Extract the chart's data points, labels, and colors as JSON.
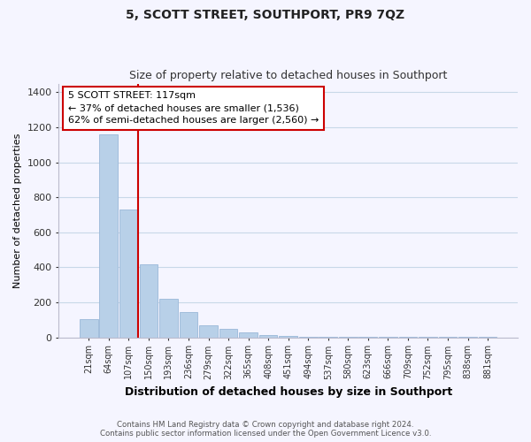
{
  "title": "5, SCOTT STREET, SOUTHPORT, PR9 7QZ",
  "subtitle": "Size of property relative to detached houses in Southport",
  "xlabel": "Distribution of detached houses by size in Southport",
  "ylabel": "Number of detached properties",
  "bar_labels": [
    "21sqm",
    "64sqm",
    "107sqm",
    "150sqm",
    "193sqm",
    "236sqm",
    "279sqm",
    "322sqm",
    "365sqm",
    "408sqm",
    "451sqm",
    "494sqm",
    "537sqm",
    "580sqm",
    "623sqm",
    "666sqm",
    "709sqm",
    "752sqm",
    "795sqm",
    "838sqm",
    "881sqm"
  ],
  "bar_values": [
    105,
    1160,
    730,
    415,
    220,
    145,
    70,
    50,
    30,
    15,
    10,
    5,
    2,
    2,
    5,
    2,
    2,
    2,
    2,
    2,
    2
  ],
  "bar_color": "#b8d0e8",
  "bar_edge_color": "#9ab8d8",
  "vline_color": "#cc0000",
  "vline_index": 2,
  "annotation_text": "5 SCOTT STREET: 117sqm\n← 37% of detached houses are smaller (1,536)\n62% of semi-detached houses are larger (2,560) →",
  "ylim": [
    0,
    1450
  ],
  "yticks": [
    0,
    200,
    400,
    600,
    800,
    1000,
    1200,
    1400
  ],
  "footer_line1": "Contains HM Land Registry data © Crown copyright and database right 2024.",
  "footer_line2": "Contains public sector information licensed under the Open Government Licence v3.0.",
  "bg_color": "#f5f5ff",
  "grid_color": "#c8d8e8"
}
